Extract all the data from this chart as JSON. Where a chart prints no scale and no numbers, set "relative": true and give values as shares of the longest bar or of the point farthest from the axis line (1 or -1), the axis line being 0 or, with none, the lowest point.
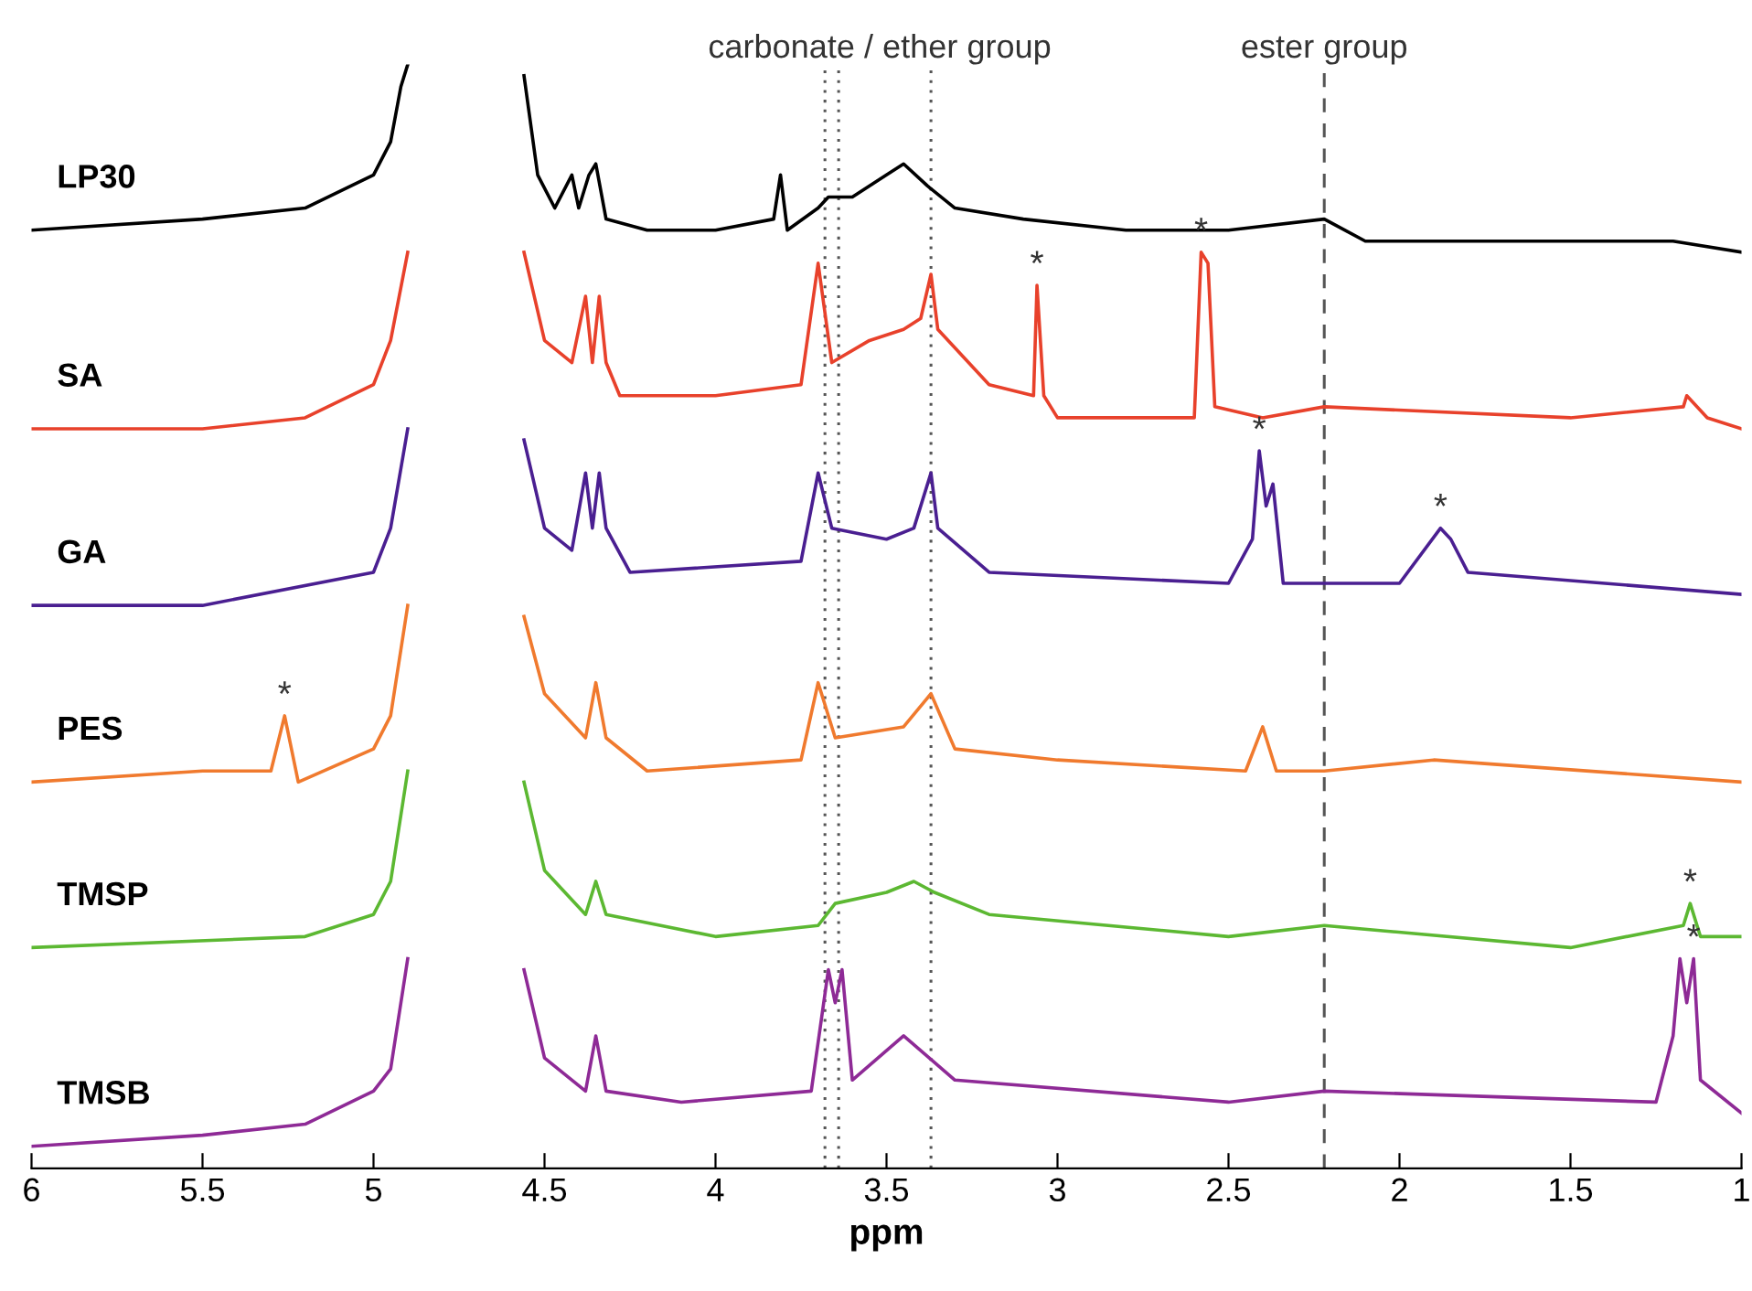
{
  "chart_data": {
    "type": "line",
    "relative": true,
    "xlabel": "ppm",
    "xlim": [
      6,
      1
    ],
    "xticks": [
      6,
      5.5,
      5,
      4.5,
      4,
      3.5,
      3,
      2.5,
      2,
      1.5,
      1
    ],
    "grid": false,
    "legend": false,
    "tick_labels": "x",
    "line_style": "solid",
    "marker": "none",
    "series": [
      {
        "name": "LP30",
        "color": "#000000",
        "x": [
          6,
          5.5,
          5.2,
          5.0,
          4.95,
          4.92,
          4.9,
          4.7,
          4.56,
          4.52,
          4.47,
          4.42,
          4.4,
          4.37,
          4.35,
          4.32,
          4.2,
          4.0,
          3.83,
          3.81,
          3.79,
          3.7,
          3.67,
          3.6,
          3.5,
          3.45,
          3.38,
          3.3,
          3.1,
          2.8,
          2.5,
          2.22,
          2.1,
          1.5,
          1.2,
          1.0
        ],
        "values": [
          0.85,
          0.86,
          0.87,
          0.9,
          0.93,
          0.98,
          1.0,
          null,
          0.99,
          0.9,
          0.87,
          0.9,
          0.87,
          0.9,
          0.91,
          0.86,
          0.85,
          0.85,
          0.86,
          0.9,
          0.85,
          0.87,
          0.88,
          0.88,
          0.9,
          0.91,
          0.89,
          0.87,
          0.86,
          0.85,
          0.85,
          0.86,
          0.84,
          0.84,
          0.84,
          0.83
        ]
      },
      {
        "name": "SA",
        "color": "#e8412b",
        "x": [
          6,
          5.5,
          5.2,
          5.0,
          4.95,
          4.9,
          4.7,
          4.56,
          4.5,
          4.42,
          4.38,
          4.36,
          4.34,
          4.32,
          4.28,
          4.0,
          3.75,
          3.7,
          3.66,
          3.55,
          3.45,
          3.4,
          3.37,
          3.35,
          3.2,
          3.07,
          3.06,
          3.04,
          3.0,
          2.6,
          2.58,
          2.56,
          2.54,
          2.4,
          2.22,
          1.5,
          1.17,
          1.16,
          1.1,
          1.0
        ],
        "values": [
          0.67,
          0.67,
          0.68,
          0.71,
          0.75,
          0.83,
          null,
          0.83,
          0.75,
          0.73,
          0.79,
          0.73,
          0.79,
          0.73,
          0.7,
          0.7,
          0.71,
          0.82,
          0.73,
          0.75,
          0.76,
          0.77,
          0.81,
          0.76,
          0.71,
          0.7,
          0.8,
          0.7,
          0.68,
          0.68,
          0.83,
          0.82,
          0.69,
          0.68,
          0.69,
          0.68,
          0.69,
          0.7,
          0.68,
          0.67
        ]
      },
      {
        "name": "GA",
        "color": "#4a1f91",
        "x": [
          6,
          5.5,
          5.0,
          4.95,
          4.9,
          4.7,
          4.56,
          4.5,
          4.42,
          4.38,
          4.36,
          4.34,
          4.32,
          4.25,
          3.75,
          3.7,
          3.66,
          3.5,
          3.42,
          3.37,
          3.35,
          3.2,
          2.5,
          2.43,
          2.41,
          2.39,
          2.37,
          2.34,
          2.0,
          1.88,
          1.85,
          1.8,
          1.0
        ],
        "values": [
          0.51,
          0.51,
          0.54,
          0.58,
          0.67,
          null,
          0.66,
          0.58,
          0.56,
          0.63,
          0.58,
          0.63,
          0.58,
          0.54,
          0.55,
          0.63,
          0.58,
          0.57,
          0.58,
          0.63,
          0.58,
          0.54,
          0.53,
          0.57,
          0.65,
          0.6,
          0.62,
          0.53,
          0.53,
          0.58,
          0.57,
          0.54,
          0.52
        ]
      },
      {
        "name": "PES",
        "color": "#f07a2e",
        "x": [
          6,
          5.5,
          5.3,
          5.26,
          5.22,
          5.0,
          4.95,
          4.9,
          4.7,
          4.56,
          4.5,
          4.38,
          4.35,
          4.32,
          4.2,
          3.75,
          3.7,
          3.65,
          3.45,
          3.37,
          3.3,
          3.0,
          2.45,
          2.4,
          2.36,
          2.22,
          1.9,
          1.0
        ],
        "values": [
          0.35,
          0.36,
          0.36,
          0.41,
          0.35,
          0.38,
          0.41,
          0.51,
          null,
          0.5,
          0.43,
          0.39,
          0.44,
          0.39,
          0.36,
          0.37,
          0.44,
          0.39,
          0.4,
          0.43,
          0.38,
          0.37,
          0.36,
          0.4,
          0.36,
          0.36,
          0.37,
          0.35
        ]
      },
      {
        "name": "TMSP",
        "color": "#5cb832",
        "x": [
          6,
          5.2,
          5.0,
          4.95,
          4.9,
          4.7,
          4.56,
          4.5,
          4.38,
          4.35,
          4.32,
          4.0,
          3.7,
          3.65,
          3.5,
          3.42,
          3.36,
          3.2,
          2.5,
          2.22,
          1.5,
          1.17,
          1.15,
          1.12,
          1.0
        ],
        "values": [
          0.2,
          0.21,
          0.23,
          0.26,
          0.36,
          null,
          0.35,
          0.27,
          0.23,
          0.26,
          0.23,
          0.21,
          0.22,
          0.24,
          0.25,
          0.26,
          0.25,
          0.23,
          0.21,
          0.22,
          0.2,
          0.22,
          0.24,
          0.21,
          0.21
        ]
      },
      {
        "name": "TMSB",
        "color": "#8e2a96",
        "x": [
          6,
          5.5,
          5.2,
          5.0,
          4.95,
          4.9,
          4.7,
          4.56,
          4.5,
          4.38,
          4.35,
          4.32,
          4.1,
          3.72,
          3.67,
          3.65,
          3.63,
          3.6,
          3.45,
          3.3,
          2.5,
          2.22,
          1.25,
          1.2,
          1.18,
          1.16,
          1.14,
          1.12,
          1.0
        ],
        "values": [
          0.02,
          0.03,
          0.04,
          0.07,
          0.09,
          0.19,
          null,
          0.18,
          0.1,
          0.07,
          0.12,
          0.07,
          0.06,
          0.07,
          0.18,
          0.15,
          0.18,
          0.08,
          0.12,
          0.08,
          0.06,
          0.07,
          0.06,
          0.12,
          0.19,
          0.15,
          0.19,
          0.08,
          0.05
        ]
      }
    ],
    "ref_lines": [
      {
        "axis": "x",
        "value": 3.68,
        "line_style": "dotted",
        "color": "#555555"
      },
      {
        "axis": "x",
        "value": 3.64,
        "line_style": "dotted",
        "color": "#555555"
      },
      {
        "axis": "x",
        "value": 3.37,
        "line_style": "dotted",
        "color": "#555555"
      },
      {
        "axis": "x",
        "value": 2.22,
        "line_style": "dashed",
        "color": "#555555",
        "label": "ester group"
      }
    ],
    "annotations": [
      "carbonate / ether group",
      {
        "text": "*",
        "x": 3.06,
        "y": 0.8
      },
      {
        "text": "*",
        "x": 2.58,
        "y": 0.83
      },
      {
        "text": "*",
        "x": 2.41,
        "y": 0.65
      },
      {
        "text": "*",
        "x": 1.88,
        "y": 0.58
      },
      {
        "text": "*",
        "x": 5.26,
        "y": 0.41
      },
      {
        "text": "*",
        "x": 1.15,
        "y": 0.24
      },
      {
        "text": "*",
        "x": 1.14,
        "y": 0.19
      }
    ]
  }
}
